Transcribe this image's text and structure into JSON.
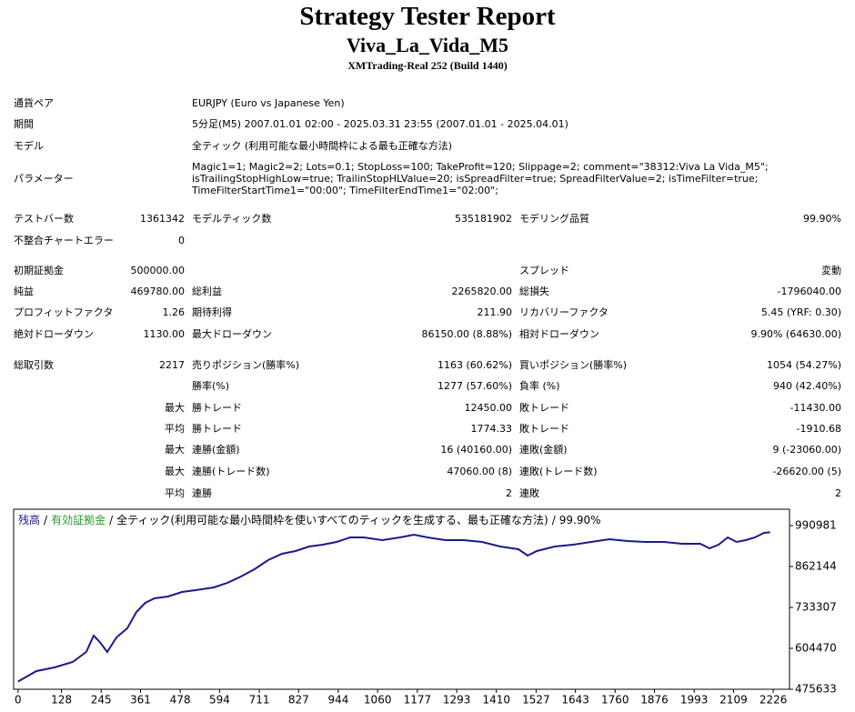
{
  "header": {
    "title": "Strategy Tester Report",
    "subtitle": "Viva_La_Vida_M5",
    "server": "XMTrading-Real 252 (Build 1440)"
  },
  "info": [
    {
      "label": "通貨ペア",
      "value": [
        "EURJPY (Euro vs Japanese Yen)"
      ]
    },
    {
      "label": "期間",
      "value": [
        "5分足(M5) 2007.01.01 02:00 - 2025.03.31 23:55 (2007.01.01 - 2025.04.01)"
      ]
    },
    {
      "label": "モデル",
      "value": [
        "全ティック (利用可能な最小時間枠による最も正確な方法)"
      ]
    },
    {
      "label": "パラメーター",
      "value": [
        "Magic1=1; Magic2=2; Lots=0.1; StopLoss=100; TakeProfit=120; Slippage=2; comment=\"38312:Viva La Vida_M5\";",
        "isTrailingStopHighLow=true; TrailinStopHLValue=20; isSpreadFilter=true; SpreadFilterValue=2; isTimeFilter=true;",
        "TimeFilterStartTime1=\"00:00\"; TimeFilterEndTime1=\"02:00\";"
      ]
    }
  ],
  "stats": [
    [
      "テストバー数",
      "1361342",
      "モデルティック数",
      "535181902",
      "モデリング品質",
      "99.90%"
    ],
    [
      "不整合チャートエラー",
      "0",
      null,
      null,
      null,
      null
    ],
    [
      "初期証拠金",
      "500000.00",
      null,
      null,
      "スプレッド",
      "変動"
    ],
    [
      "純益",
      "469780.00",
      "総利益",
      "2265820.00",
      "総損失",
      "-1796040.00"
    ],
    [
      "プロフィットファクタ",
      "1.26",
      "期待利得",
      "211.90",
      "リカバリーファクタ",
      "5.45 (YRF: 0.30)"
    ],
    [
      "絶対ドローダウン",
      "1130.00",
      "最大ドローダウン",
      "86150.00 (8.88%)",
      "相対ドローダウン",
      "9.90% (64630.00)"
    ],
    [
      "総取引数",
      "2217",
      "売りポジション(勝率%)",
      "1163 (60.62%)",
      "買いポジション(勝率%)",
      "1054 (54.27%)"
    ],
    [
      null,
      null,
      "勝率(%)",
      "1277 (57.60%)",
      "負率 (%)",
      "940 (42.40%)"
    ],
    [
      null,
      "最大",
      "勝トレード",
      "12450.00",
      "敗トレード",
      "-11430.00"
    ],
    [
      null,
      "平均",
      "勝トレード",
      "1774.33",
      "敗トレード",
      "-1910.68"
    ],
    [
      null,
      "最大",
      "連勝(金額)",
      "16 (40160.00)",
      "連敗(金額)",
      "9 (-23060.00)"
    ],
    [
      null,
      "最大",
      "連勝(トレード数)",
      "47060.00 (8)",
      "連敗(トレード数)",
      "-26620.00 (5)"
    ],
    [
      null,
      "平均",
      "連勝",
      "2",
      "連敗",
      "2"
    ]
  ],
  "chart_data": {
    "type": "line",
    "legend": [
      {
        "name": "残高",
        "color": "#1a1a8c"
      },
      {
        "name": "有効証拠金",
        "color": "#2e9a2e"
      }
    ],
    "separator": "/",
    "caption": "全ティック(利用可能な最小時間枠を使いすべてのティックを生成する、最も正確な方法)",
    "quality": "99.90%",
    "color": "#1a1a8c",
    "x": [
      0,
      54,
      107,
      161,
      201,
      223,
      241,
      263,
      290,
      322,
      349,
      375,
      402,
      442,
      483,
      523,
      577,
      617,
      657,
      697,
      737,
      778,
      818,
      858,
      898,
      939,
      979,
      1019,
      1073,
      1126,
      1167,
      1207,
      1260,
      1314,
      1368,
      1421,
      1475,
      1502,
      1529,
      1582,
      1636,
      1689,
      1743,
      1797,
      1850,
      1904,
      1958,
      2011,
      2038,
      2065,
      2092,
      2118,
      2145,
      2172,
      2199,
      2217
    ],
    "values": [
      500000,
      533000,
      544300,
      561500,
      593000,
      644500,
      624500,
      593000,
      638800,
      667500,
      719000,
      747600,
      761900,
      767700,
      782000,
      787700,
      796300,
      810600,
      830600,
      853500,
      882200,
      902200,
      910800,
      925100,
      930900,
      939400,
      953800,
      953800,
      945200,
      953800,
      962300,
      953800,
      945200,
      945200,
      939400,
      925100,
      916500,
      896500,
      910800,
      925100,
      930900,
      939400,
      948000,
      942300,
      939400,
      939400,
      933700,
      933700,
      919400,
      930900,
      953800,
      939400,
      945200,
      953800,
      968100,
      969780
    ],
    "xlim": [
      -13,
      2274
    ],
    "xticks": [
      0,
      128,
      245,
      361,
      478,
      594,
      711,
      827,
      944,
      1060,
      1177,
      1293,
      1410,
      1527,
      1643,
      1760,
      1876,
      1993,
      2109,
      2226
    ],
    "ylim": [
      475633,
      1042516
    ],
    "yticks": [
      475633,
      604470,
      733307,
      862144,
      990981
    ]
  }
}
